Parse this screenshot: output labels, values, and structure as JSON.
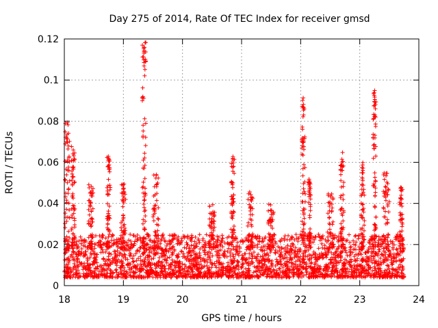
{
  "chart_data": {
    "type": "scatter",
    "title": "Day 275 of 2014, Rate Of TEC Index for receiver gmsd",
    "xlabel": "GPS time / hours",
    "ylabel": "ROTI / TECUs",
    "xlim": [
      18,
      24
    ],
    "ylim": [
      0,
      0.12
    ],
    "x_ticks": [
      "18",
      "19",
      "20",
      "21",
      "22",
      "23",
      "24"
    ],
    "y_ticks": [
      "0",
      "0.02",
      "0.04",
      "0.06",
      "0.08",
      "0.1",
      "0.12"
    ],
    "grid": true,
    "marker": "+",
    "color": "#ff0000",
    "x_range_of_samples": [
      18.0,
      23.75
    ],
    "baseline_range": [
      0.004,
      0.025
    ],
    "bursts": [
      {
        "x_center": 18.05,
        "x_width": 0.08,
        "y_max": 0.08
      },
      {
        "x_center": 18.15,
        "x_width": 0.06,
        "y_max": 0.068
      },
      {
        "x_center": 18.45,
        "x_width": 0.08,
        "y_max": 0.05
      },
      {
        "x_center": 18.75,
        "x_width": 0.06,
        "y_max": 0.069
      },
      {
        "x_center": 19.0,
        "x_width": 0.08,
        "y_max": 0.05
      },
      {
        "x_center": 19.35,
        "x_width": 0.06,
        "y_max": 0.12
      },
      {
        "x_center": 19.55,
        "x_width": 0.1,
        "y_max": 0.054
      },
      {
        "x_center": 20.5,
        "x_width": 0.1,
        "y_max": 0.04
      },
      {
        "x_center": 20.85,
        "x_width": 0.06,
        "y_max": 0.065
      },
      {
        "x_center": 21.15,
        "x_width": 0.1,
        "y_max": 0.046
      },
      {
        "x_center": 21.5,
        "x_width": 0.1,
        "y_max": 0.04
      },
      {
        "x_center": 22.05,
        "x_width": 0.06,
        "y_max": 0.092
      },
      {
        "x_center": 22.15,
        "x_width": 0.04,
        "y_max": 0.052
      },
      {
        "x_center": 22.5,
        "x_width": 0.1,
        "y_max": 0.045
      },
      {
        "x_center": 22.7,
        "x_width": 0.06,
        "y_max": 0.066
      },
      {
        "x_center": 23.05,
        "x_width": 0.06,
        "y_max": 0.06
      },
      {
        "x_center": 23.25,
        "x_width": 0.05,
        "y_max": 0.095
      },
      {
        "x_center": 23.45,
        "x_width": 0.1,
        "y_max": 0.055
      },
      {
        "x_center": 23.7,
        "x_width": 0.05,
        "y_max": 0.052
      }
    ]
  }
}
